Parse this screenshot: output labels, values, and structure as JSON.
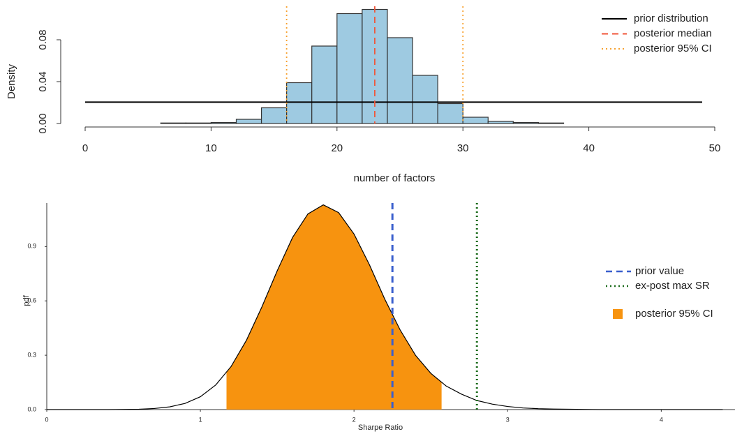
{
  "chart_data": [
    {
      "type": "histogram",
      "xlabel": "number of factors",
      "ylabel": "Density",
      "bins": [
        6,
        8,
        10,
        12,
        14,
        16,
        18,
        20,
        22,
        24,
        26,
        28,
        30,
        32,
        34,
        36,
        38
      ],
      "values": [
        0.0005,
        0.0005,
        0.001,
        0.004,
        0.015,
        0.039,
        0.074,
        0.105,
        0.109,
        0.082,
        0.046,
        0.019,
        0.006,
        0.002,
        0.001,
        0.0005
      ],
      "color": "#9ecae1",
      "edgecolor": "#333333",
      "xlim": [
        0,
        50
      ],
      "xticks": [
        0,
        10,
        20,
        30,
        40,
        50
      ],
      "ylim": [
        0,
        0.112
      ],
      "yticks": [
        {
          "value": 0,
          "label": "0.00"
        },
        {
          "value": 0.04,
          "label": "0.04"
        },
        {
          "value": 0.08,
          "label": "0.08"
        }
      ],
      "series": [
        {
          "name": "prior distribution",
          "x": [
            0,
            49
          ],
          "values": [
            0.0204,
            0.0204
          ],
          "color": "#000000"
        }
      ],
      "vlines": [
        {
          "name": "posterior median",
          "x": [
            23
          ],
          "color": "#f0563a",
          "dash": "dashed"
        },
        {
          "name": "posterior 95% CI",
          "x": [
            16,
            30
          ],
          "color": "#f7a12f",
          "dash": "dotted"
        }
      ],
      "legend": "upper right"
    },
    {
      "type": "density",
      "xlabel": "Sharpe Ratio",
      "ylabel": "pdf",
      "series": [
        {
          "x": [
            0,
            0.1,
            0.2,
            0.3,
            0.4,
            0.5,
            0.6,
            0.7,
            0.8,
            0.9,
            1.0,
            1.1,
            1.2,
            1.3,
            1.4,
            1.5,
            1.6,
            1.7,
            1.8,
            1.9,
            2.0,
            2.1,
            2.2,
            2.3,
            2.4,
            2.5,
            2.6,
            2.7,
            2.8,
            2.9,
            3.0,
            3.1,
            3.2,
            3.3,
            3.4,
            3.5,
            3.6,
            3.7,
            3.8,
            3.9,
            4.0,
            4.1,
            4.2,
            4.3,
            4.4
          ],
          "values": [
            0,
            0,
            0,
            0,
            0,
            0.001,
            0.002,
            0.006,
            0.015,
            0.034,
            0.071,
            0.136,
            0.238,
            0.383,
            0.566,
            0.766,
            0.95,
            1.08,
            1.13,
            1.087,
            0.969,
            0.8,
            0.61,
            0.44,
            0.3,
            0.2,
            0.13,
            0.085,
            0.05,
            0.03,
            0.017,
            0.009,
            0.005,
            0.003,
            0.002,
            0.001,
            0,
            0,
            0,
            0,
            0,
            0,
            0,
            0,
            0
          ],
          "color": "#000000"
        }
      ],
      "ci": {
        "name": "posterior 95% CI",
        "range": [
          1.17,
          2.57
        ],
        "color": "#f7930f"
      },
      "vlines": [
        {
          "name": "prior value",
          "x": [
            2.25
          ],
          "color": "#3a5fcd",
          "dash": "dashed"
        },
        {
          "name": "ex-post max SR",
          "x": [
            2.8
          ],
          "color": "#1a6b1a",
          "dash": "dotted"
        }
      ],
      "xlim": [
        0,
        4.48
      ],
      "xticks": [
        0,
        1,
        2,
        3,
        4
      ],
      "ylim": [
        0,
        1.14
      ],
      "yticks": [
        {
          "value": 0,
          "label": "0.0"
        },
        {
          "value": 0.3,
          "label": "0.3"
        },
        {
          "value": 0.6,
          "label": "0.6"
        },
        {
          "value": 0.9,
          "label": "0.9"
        }
      ],
      "legend": "center right"
    }
  ]
}
